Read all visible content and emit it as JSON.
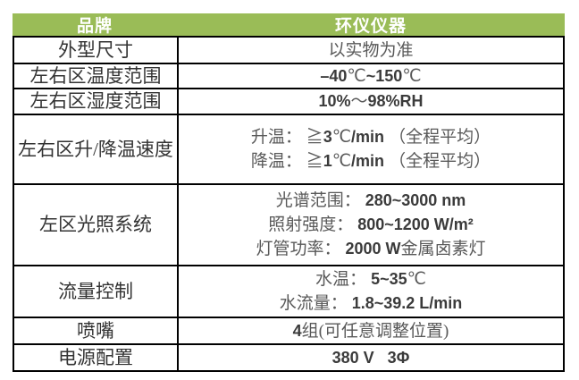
{
  "colors": {
    "header_green": "#9abc57",
    "header_text": "#ffffff",
    "border": "#000000",
    "label_text": "#333333",
    "value_text": "#595959",
    "value_number_text": "#3b3b3b"
  },
  "table": {
    "header": {
      "brand_label": "品牌",
      "brand_value": "环仪仪器"
    },
    "rows": [
      {
        "label": "外型尺寸",
        "lines": [
          "以实物为准"
        ]
      },
      {
        "label": "左右区温度范围",
        "lines": [
          "–40℃~150℃"
        ]
      },
      {
        "label": "左右区湿度范围",
        "lines": [
          "10%～98%RH"
        ]
      },
      {
        "label": "左右区升/降温速度",
        "lines": [
          "升温： ≧3℃/min （全程平均）",
          "降温： ≧1℃/min （全程平均）"
        ]
      },
      {
        "label": "左区光照系统",
        "lines": [
          "光谱范围： 280~3000 nm",
          "照射强度： 800~1200 W/m²",
          "灯管功率： 2000 W金属卤素灯"
        ]
      },
      {
        "label": "流量控制",
        "lines": [
          "水温： 5~35℃",
          "水流量： 1.8~39.2 L/min"
        ]
      },
      {
        "label": "喷嘴",
        "lines": [
          "4组(可任意调整位置)"
        ]
      },
      {
        "label": "电源配置",
        "lines": [
          "380 V   3Φ"
        ]
      }
    ]
  }
}
